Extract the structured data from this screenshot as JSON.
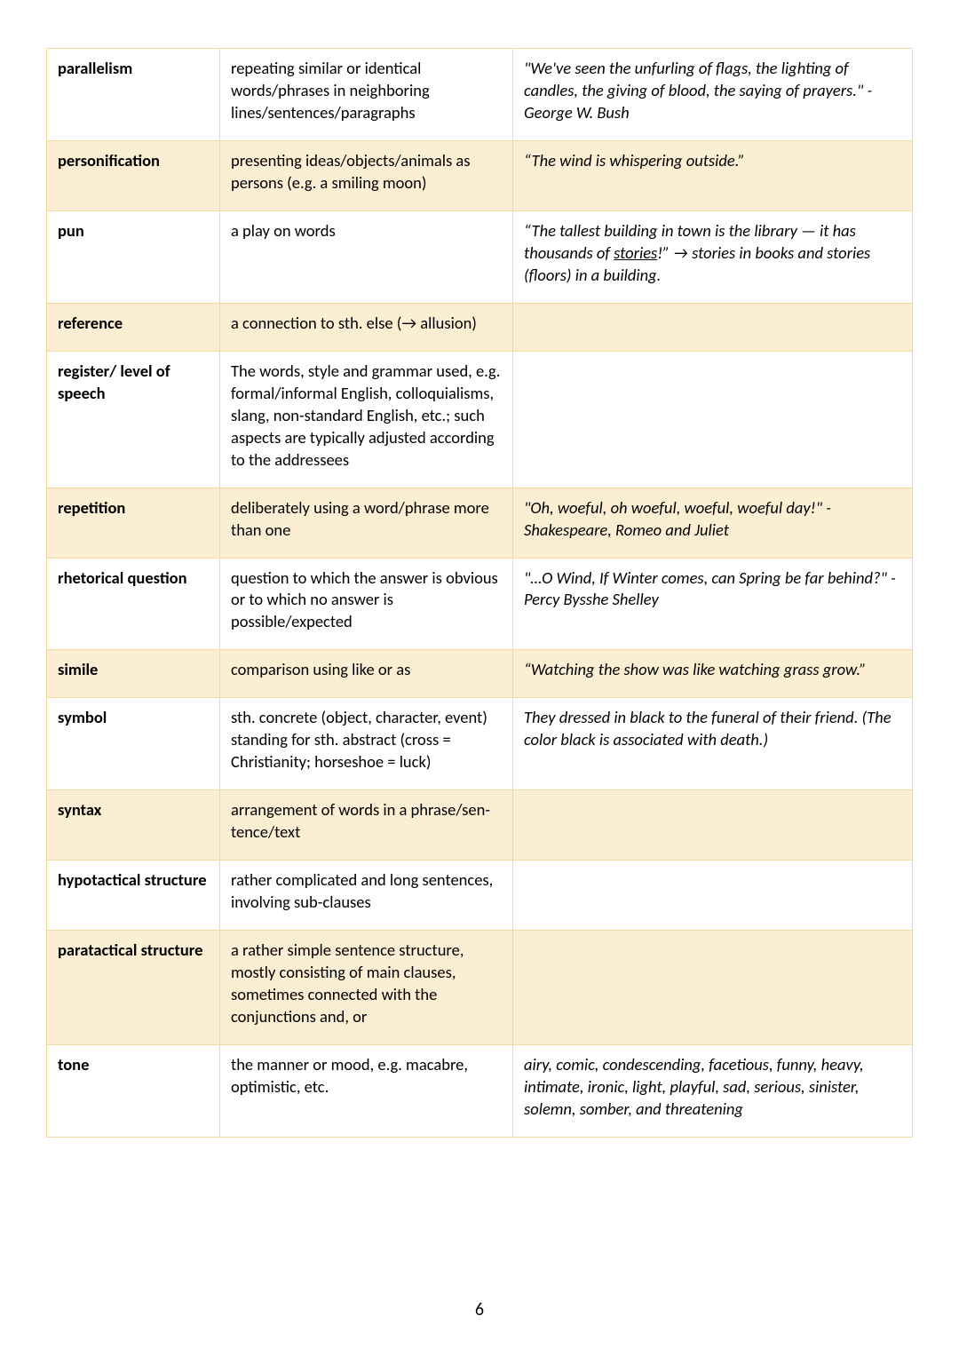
{
  "page_number": "6",
  "colors": {
    "border": "#f4d9a0",
    "shaded_bg": "#fbeed2",
    "text": "#000000",
    "page_bg": "#ffffff"
  },
  "rows": [
    {
      "term": "parallelism",
      "definition": "repeating similar or identical words/phrases in neighboring lines/sentences/paragraphs",
      "example": "\"We've seen the unfurling of flags, the lighting of candles, the giving of blood, the saying of prayers.\" -George W. Bush",
      "shaded": false,
      "example_italic": true
    },
    {
      "term": "personification",
      "definition": "presenting ideas/objects/animals as persons (e.g. a smiling moon)",
      "example": "“The wind is whispering outside.”",
      "shaded": true,
      "example_italic": true
    },
    {
      "term": "pun",
      "definition": "a play on words",
      "example_html": true,
      "example_parts": {
        "pre": "“The tallest building in town is the library — it has thousands of ",
        "underlined": "stories",
        "post": "!” → stories in books and stories (floors) in a building."
      },
      "shaded": false,
      "example_italic": true
    },
    {
      "term": "reference",
      "definition": "a connection to sth. else (→ allusion)",
      "example": "",
      "shaded": true,
      "example_italic": false
    },
    {
      "term": "register/ level of speech",
      "definition": "The words, style and grammar used, e.g. for­mal/informal English, colloquialisms, slang, non-standard English, etc.; such aspects are typically adjusted according to the address­ees",
      "example": "",
      "shaded": false,
      "example_italic": false
    },
    {
      "term": "repetition",
      "definition": "deliberately using a word/phrase more than one",
      "example": "\"Oh, woeful, oh woeful, woeful, woeful day!\" - Shakespeare, Romeo and Juliet",
      "shaded": true,
      "example_italic": true
    },
    {
      "term": "rhetorical question",
      "definition": "question to which the answer is obvious or to which no answer is possible/expected",
      "example": "\"…O Wind, If Winter comes, can Spring be far behind?\" -Percy Bysshe Shelley",
      "shaded": false,
      "example_italic": true
    },
    {
      "term": "simile",
      "definition": "comparison using like or as",
      "example": "“Watching the show was like watching grass grow.”",
      "shaded": true,
      "example_italic": true
    },
    {
      "term": "symbol",
      "definition": "sth. concrete (object, character, event) standing for sth. abstract (cross = Christian­ity; horseshoe = luck)",
      "example": "They dressed in black to the funeral of their friend. (The color black is associated with death.)",
      "shaded": false,
      "example_italic": true
    },
    {
      "term": "syntax",
      "definition": "arrangement of words in a phrase/sen­tence/text",
      "example": "",
      "shaded": true,
      "example_italic": false
    },
    {
      "term": "hypotactical structure",
      "definition": "rather complicated and long sentences, in­volving sub-clauses",
      "example": "",
      "shaded": false,
      "example_italic": false
    },
    {
      "term": "paratactical structure",
      "definition": "a rather simple sentence structure, mostly consisting of main clauses, sometimes con­nected with the conjunctions and, or",
      "example": "",
      "shaded": true,
      "example_italic": false
    },
    {
      "term": "tone",
      "definition": "the manner or mood, e.g. macabre, optimis­tic, etc.",
      "example": "airy, comic, condescending, facetious, funny, heavy, intimate, ironic, light, play­ful, sad, serious, sinister, solemn, somber, and threatening",
      "shaded": false,
      "example_italic": true
    }
  ]
}
